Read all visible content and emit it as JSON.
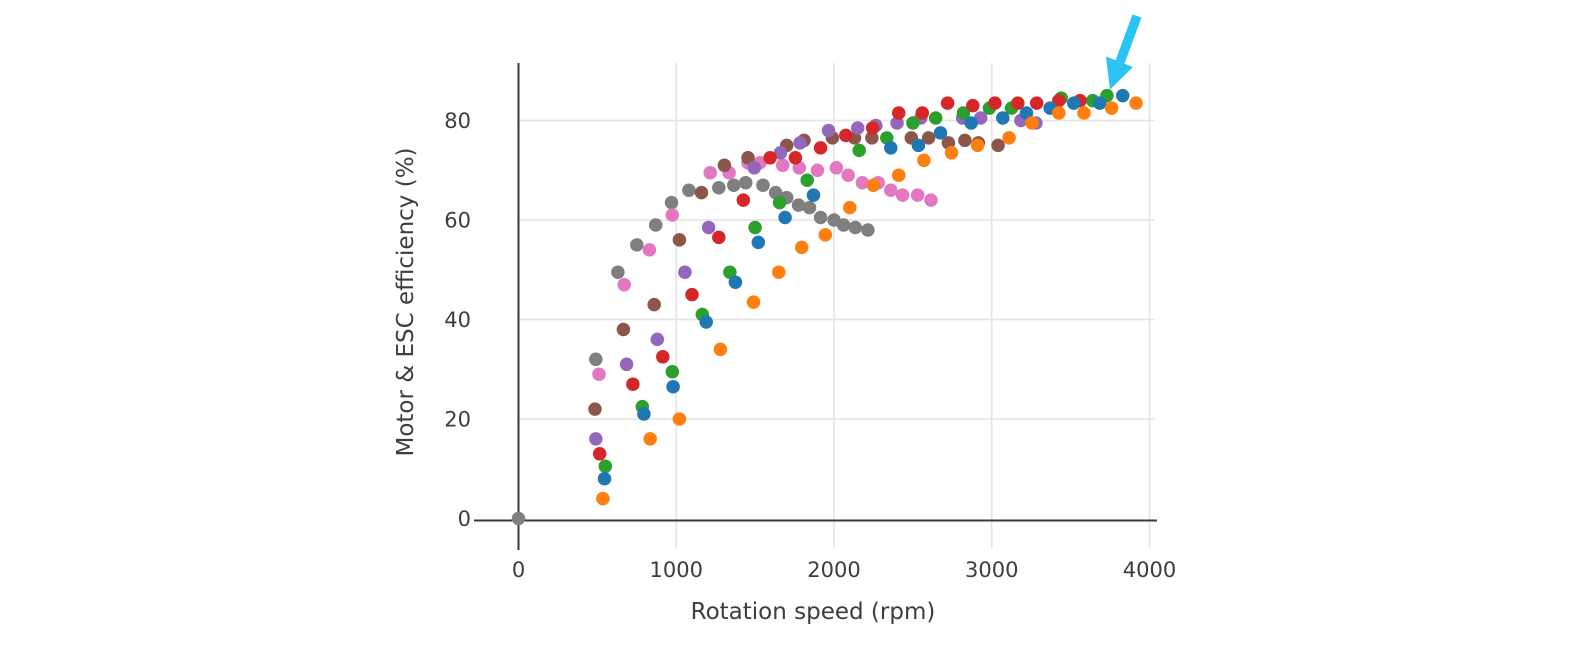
{
  "page": {
    "background": "#ffffff",
    "description": "Scatter plot of motor and ESC efficiency versus rotation speed with a cyan annotation arrow pointing at a green data point near 3730 rpm"
  },
  "chart_data": {
    "type": "scatter",
    "title": "",
    "xlabel": "Rotation speed (rpm)",
    "ylabel": "Motor & ESC efficiency (%)",
    "x_ticks": [
      0,
      1000,
      2000,
      3000,
      4000
    ],
    "y_ticks": [
      0,
      20,
      40,
      60,
      80
    ],
    "xlim": [
      -300,
      4300
    ],
    "ylim": [
      -4.5,
      92
    ],
    "grid": true,
    "legend": "none",
    "marker_diameter_px": 13.5,
    "axis_color": "#3a3a3a",
    "grid_color": "#e4e4e4",
    "series": [
      {
        "name": "series-gray",
        "color": "#7f7f7f",
        "points": [
          [
            0,
            0
          ],
          [
            490,
            32
          ],
          [
            630,
            49.5
          ],
          [
            750,
            55
          ],
          [
            870,
            59
          ],
          [
            970,
            63.5
          ],
          [
            1080,
            66
          ],
          [
            1270,
            66.5
          ],
          [
            1365,
            67
          ],
          [
            1440,
            67.5
          ],
          [
            1550,
            67
          ],
          [
            1630,
            65.5
          ],
          [
            1700,
            64.5
          ],
          [
            1775,
            63
          ],
          [
            1845,
            62.5
          ],
          [
            1915,
            60.5
          ],
          [
            2000,
            60
          ],
          [
            2060,
            59
          ],
          [
            2135,
            58.5
          ],
          [
            2215,
            58
          ]
        ]
      },
      {
        "name": "series-pink",
        "color": "#e377c2",
        "points": [
          [
            510,
            29
          ],
          [
            670,
            47
          ],
          [
            830,
            54
          ],
          [
            975,
            61
          ],
          [
            1215,
            69.5
          ],
          [
            1335,
            69.5
          ],
          [
            1455,
            71.5
          ],
          [
            1530,
            71.5
          ],
          [
            1675,
            71
          ],
          [
            1780,
            70.5
          ],
          [
            1895,
            70
          ],
          [
            2015,
            70.5
          ],
          [
            2090,
            69
          ],
          [
            2180,
            67.5
          ],
          [
            2280,
            67.5
          ],
          [
            2360,
            66
          ],
          [
            2435,
            65
          ],
          [
            2530,
            65
          ],
          [
            2615,
            64
          ]
        ]
      },
      {
        "name": "series-brown",
        "color": "#8c564b",
        "points": [
          [
            485,
            22
          ],
          [
            665,
            38
          ],
          [
            860,
            43
          ],
          [
            1020,
            56
          ],
          [
            1160,
            65.5
          ],
          [
            1305,
            71
          ],
          [
            1455,
            72.5
          ],
          [
            1700,
            75
          ],
          [
            1810,
            76
          ],
          [
            1990,
            76.5
          ],
          [
            2130,
            76.5
          ],
          [
            2240,
            76.5
          ],
          [
            2490,
            76.5
          ],
          [
            2600,
            76.5
          ],
          [
            2725,
            75.5
          ],
          [
            2830,
            76
          ],
          [
            2915,
            75.5
          ],
          [
            3040,
            75
          ]
        ]
      },
      {
        "name": "series-purple",
        "color": "#9467bd",
        "points": [
          [
            490,
            16
          ],
          [
            685,
            31
          ],
          [
            880,
            36
          ],
          [
            1055,
            49.5
          ],
          [
            1205,
            58.5
          ],
          [
            1495,
            70.5
          ],
          [
            1660,
            73.5
          ],
          [
            1785,
            75.5
          ],
          [
            1965,
            78
          ],
          [
            2150,
            78.5
          ],
          [
            2265,
            79
          ],
          [
            2400,
            79.5
          ],
          [
            2550,
            80.5
          ],
          [
            2815,
            80.5
          ],
          [
            2930,
            80.5
          ],
          [
            3185,
            80
          ],
          [
            3280,
            79.5
          ]
        ]
      },
      {
        "name": "series-green",
        "color": "#2ca02c",
        "points": [
          [
            550,
            10.5
          ],
          [
            785,
            22.5
          ],
          [
            975,
            29.5
          ],
          [
            1165,
            41
          ],
          [
            1340,
            49.5
          ],
          [
            1500,
            58.5
          ],
          [
            1655,
            63.5
          ],
          [
            1830,
            68
          ],
          [
            2160,
            74
          ],
          [
            2335,
            76.5
          ],
          [
            2500,
            79.5
          ],
          [
            2645,
            80.5
          ],
          [
            2820,
            81.5
          ],
          [
            2985,
            82.5
          ],
          [
            3125,
            82.5
          ],
          [
            3440,
            84.5
          ],
          [
            3640,
            84
          ],
          [
            3730,
            85
          ]
        ]
      },
      {
        "name": "series-red",
        "color": "#d62728",
        "points": [
          [
            515,
            13
          ],
          [
            725,
            27
          ],
          [
            915,
            32.5
          ],
          [
            1100,
            45
          ],
          [
            1270,
            56.5
          ],
          [
            1425,
            64
          ],
          [
            1595,
            72.5
          ],
          [
            1755,
            72.5
          ],
          [
            1915,
            74.5
          ],
          [
            2075,
            77
          ],
          [
            2245,
            78.5
          ],
          [
            2410,
            81.5
          ],
          [
            2560,
            81.5
          ],
          [
            2720,
            83.5
          ],
          [
            2880,
            83
          ],
          [
            3020,
            83.5
          ],
          [
            3165,
            83.5
          ],
          [
            3285,
            83.5
          ],
          [
            3425,
            84
          ],
          [
            3560,
            84
          ]
        ]
      },
      {
        "name": "series-blue",
        "color": "#1f77b4",
        "points": [
          [
            545,
            8
          ],
          [
            795,
            21
          ],
          [
            980,
            26.5
          ],
          [
            1190,
            39.5
          ],
          [
            1375,
            47.5
          ],
          [
            1520,
            55.5
          ],
          [
            1690,
            60.5
          ],
          [
            1870,
            65
          ],
          [
            2360,
            74.5
          ],
          [
            2535,
            75
          ],
          [
            2675,
            77.5
          ],
          [
            2870,
            79.5
          ],
          [
            3070,
            80.5
          ],
          [
            3220,
            81.5
          ],
          [
            3370,
            82.5
          ],
          [
            3520,
            83.5
          ],
          [
            3685,
            83.5
          ],
          [
            3830,
            85
          ]
        ]
      },
      {
        "name": "series-orange",
        "color": "#ff7f0e",
        "points": [
          [
            535,
            4
          ],
          [
            835,
            16
          ],
          [
            1020,
            20
          ],
          [
            1280,
            34
          ],
          [
            1490,
            43.5
          ],
          [
            1650,
            49.5
          ],
          [
            1795,
            54.5
          ],
          [
            1945,
            57
          ],
          [
            2100,
            62.5
          ],
          [
            2250,
            67
          ],
          [
            2410,
            69
          ],
          [
            2570,
            72
          ],
          [
            2745,
            73.5
          ],
          [
            2910,
            75
          ],
          [
            3110,
            76.5
          ],
          [
            3255,
            79.5
          ],
          [
            3425,
            81.5
          ],
          [
            3585,
            81.5
          ],
          [
            3760,
            82.5
          ],
          [
            3915,
            83.5
          ]
        ]
      }
    ],
    "annotation": {
      "type": "arrow",
      "color": "#2bc3f2",
      "points_to": {
        "x": 3730,
        "y": 85,
        "series": "series-green"
      }
    }
  }
}
